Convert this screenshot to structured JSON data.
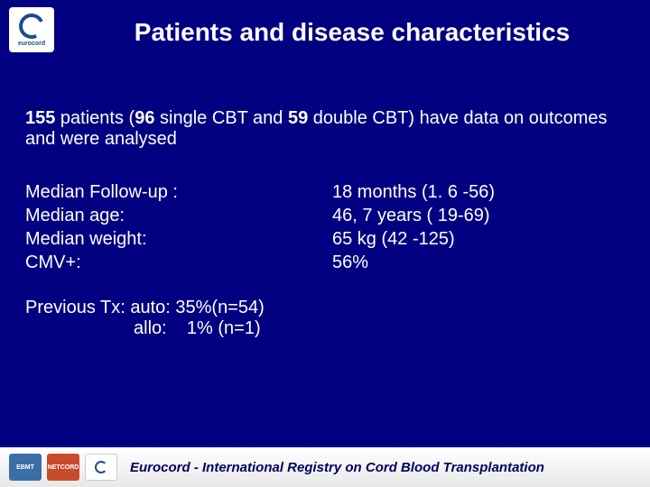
{
  "logo": {
    "label": "eurocord"
  },
  "title": "Patients and disease characteristics",
  "intro": {
    "n_total": "155",
    "text1": " patients (",
    "n_single": "96",
    "text2": " single CBT and ",
    "n_double": "59",
    "text3": " double CBT) have data on outcomes and were analysed"
  },
  "stats": {
    "rows": [
      {
        "label": "Median Follow-up :",
        "value": "18 months (1. 6 -56)"
      },
      {
        "label": "Median age:",
        "value": "46, 7 years ( 19-69)"
      },
      {
        "label": "Median weight:",
        "value": "65 kg (42 -125)"
      },
      {
        "label": "CMV+:",
        "value": "56%"
      }
    ]
  },
  "prevTx": {
    "line1_label": "Previous Tx: auto: 35%(n=54)",
    "line2_spacer": "",
    "line2_value": "allo:    1% (n=1)"
  },
  "footer": {
    "logos": {
      "ebmt": "EBMT",
      "netcord": "NETCORD"
    },
    "text": "Eurocord - International Registry on Cord Blood Transplantation"
  },
  "colors": {
    "background": "#000080",
    "text": "#ffffff",
    "footer_bg": "#ffffff",
    "footer_text": "#000060"
  }
}
